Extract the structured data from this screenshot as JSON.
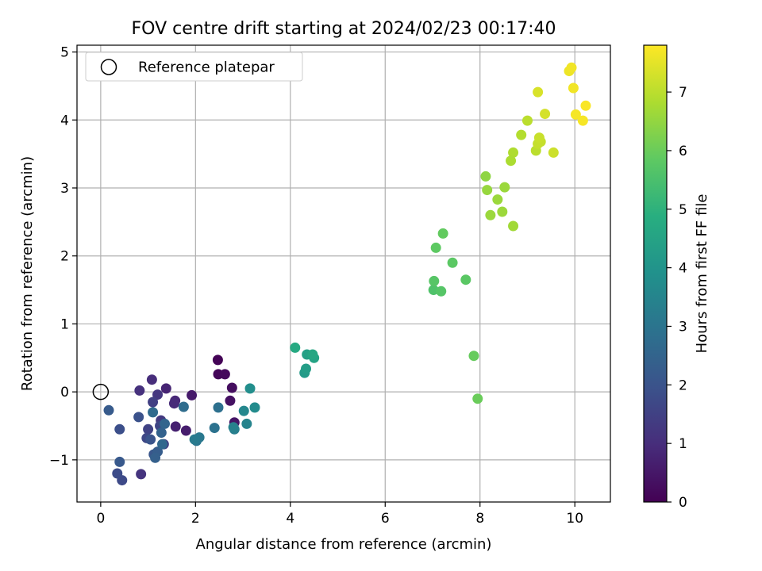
{
  "chart_data": {
    "type": "scatter",
    "title": "FOV centre drift starting at 2024/02/23 00:17:40",
    "xlabel": "Angular distance from reference (arcmin)",
    "ylabel": "Rotation from reference (arcmin)",
    "xlim": [
      -0.5,
      10.75
    ],
    "ylim": [
      -1.62,
      5.1
    ],
    "xticks": [
      0,
      2,
      4,
      6,
      8,
      10
    ],
    "yticks": [
      -1,
      0,
      1,
      2,
      3,
      4,
      5
    ],
    "xtick_labels": [
      "0",
      "2",
      "4",
      "6",
      "8",
      "10"
    ],
    "ytick_labels": [
      "−1",
      "0",
      "1",
      "2",
      "3",
      "4",
      "5"
    ],
    "grid": true,
    "legend": {
      "position": "top-left",
      "entries": [
        {
          "label": "Reference platepar",
          "marker": "open-circle"
        }
      ]
    },
    "reference_point": {
      "x": 0,
      "y": 0
    },
    "colorbar": {
      "label": "Hours from first FF file",
      "colormap": "viridis",
      "range": [
        0,
        7.8
      ],
      "ticks": [
        0,
        1,
        2,
        3,
        4,
        5,
        6,
        7
      ],
      "tick_labels": [
        "0",
        "1",
        "2",
        "3",
        "4",
        "5",
        "6",
        "7"
      ]
    },
    "points": [
      {
        "x": 2.47,
        "y": 0.47,
        "h": 0.05
      },
      {
        "x": 2.48,
        "y": 0.26,
        "h": 0.12
      },
      {
        "x": 2.62,
        "y": 0.26,
        "h": 0.2
      },
      {
        "x": 2.77,
        "y": 0.06,
        "h": 0.28
      },
      {
        "x": 2.73,
        "y": -0.13,
        "h": 0.36
      },
      {
        "x": 2.82,
        "y": -0.45,
        "h": 0.44
      },
      {
        "x": 1.92,
        "y": -0.05,
        "h": 0.55
      },
      {
        "x": 1.8,
        "y": -0.57,
        "h": 0.62
      },
      {
        "x": 1.58,
        "y": -0.51,
        "h": 0.7
      },
      {
        "x": 1.38,
        "y": 0.05,
        "h": 0.78
      },
      {
        "x": 1.57,
        "y": -0.13,
        "h": 0.86
      },
      {
        "x": 1.55,
        "y": -0.17,
        "h": 0.92
      },
      {
        "x": 1.08,
        "y": 0.18,
        "h": 1.0
      },
      {
        "x": 0.82,
        "y": 0.02,
        "h": 1.08
      },
      {
        "x": 0.85,
        "y": -1.21,
        "h": 1.15
      },
      {
        "x": 1.2,
        "y": -0.04,
        "h": 1.22
      },
      {
        "x": 1.27,
        "y": -0.42,
        "h": 1.3
      },
      {
        "x": 1.33,
        "y": -0.77,
        "h": 1.38
      },
      {
        "x": 1.1,
        "y": -0.15,
        "h": 1.45
      },
      {
        "x": 1.0,
        "y": -0.55,
        "h": 1.52
      },
      {
        "x": 1.25,
        "y": -0.5,
        "h": 1.6
      },
      {
        "x": 0.97,
        "y": -0.68,
        "h": 1.67
      },
      {
        "x": 0.45,
        "y": -1.3,
        "h": 1.74
      },
      {
        "x": 0.35,
        "y": -1.2,
        "h": 1.8
      },
      {
        "x": 0.4,
        "y": -0.55,
        "h": 1.88
      },
      {
        "x": 0.8,
        "y": -0.37,
        "h": 1.95
      },
      {
        "x": 1.05,
        "y": -0.7,
        "h": 2.02
      },
      {
        "x": 1.12,
        "y": -0.92,
        "h": 2.08
      },
      {
        "x": 0.4,
        "y": -1.03,
        "h": 2.15
      },
      {
        "x": 0.17,
        "y": -0.27,
        "h": 2.22
      },
      {
        "x": 1.2,
        "y": -0.88,
        "h": 2.3
      },
      {
        "x": 1.15,
        "y": -0.97,
        "h": 2.37
      },
      {
        "x": 1.28,
        "y": -0.6,
        "h": 2.44
      },
      {
        "x": 1.35,
        "y": -0.47,
        "h": 2.52
      },
      {
        "x": 1.3,
        "y": -0.77,
        "h": 2.6
      },
      {
        "x": 1.1,
        "y": -0.3,
        "h": 2.68
      },
      {
        "x": 1.75,
        "y": -0.22,
        "h": 2.76
      },
      {
        "x": 2.48,
        "y": -0.23,
        "h": 2.85
      },
      {
        "x": 2.4,
        "y": -0.53,
        "h": 2.94
      },
      {
        "x": 2.02,
        "y": -0.72,
        "h": 3.02
      },
      {
        "x": 2.08,
        "y": -0.67,
        "h": 3.1
      },
      {
        "x": 1.98,
        "y": -0.7,
        "h": 3.18
      },
      {
        "x": 2.82,
        "y": -0.55,
        "h": 3.3
      },
      {
        "x": 2.8,
        "y": -0.52,
        "h": 3.4
      },
      {
        "x": 3.08,
        "y": -0.47,
        "h": 3.5
      },
      {
        "x": 3.02,
        "y": -0.28,
        "h": 3.6
      },
      {
        "x": 3.25,
        "y": -0.23,
        "h": 3.7
      },
      {
        "x": 3.15,
        "y": 0.05,
        "h": 3.8
      },
      {
        "x": 4.3,
        "y": 0.28,
        "h": 4.2
      },
      {
        "x": 4.33,
        "y": 0.34,
        "h": 4.3
      },
      {
        "x": 4.35,
        "y": 0.55,
        "h": 4.4
      },
      {
        "x": 4.5,
        "y": 0.5,
        "h": 4.5
      },
      {
        "x": 4.47,
        "y": 0.55,
        "h": 4.6
      },
      {
        "x": 4.1,
        "y": 0.65,
        "h": 4.7
      },
      {
        "x": 7.02,
        "y": 1.5,
        "h": 5.6
      },
      {
        "x": 7.18,
        "y": 1.48,
        "h": 5.7
      },
      {
        "x": 7.03,
        "y": 1.63,
        "h": 5.72
      },
      {
        "x": 7.7,
        "y": 1.65,
        "h": 5.78
      },
      {
        "x": 7.42,
        "y": 1.9,
        "h": 5.8
      },
      {
        "x": 7.07,
        "y": 2.12,
        "h": 5.84
      },
      {
        "x": 7.22,
        "y": 2.33,
        "h": 5.9
      },
      {
        "x": 7.87,
        "y": 0.53,
        "h": 5.95
      },
      {
        "x": 7.95,
        "y": -0.1,
        "h": 6.0
      },
      {
        "x": 8.12,
        "y": 3.17,
        "h": 6.45
      },
      {
        "x": 8.15,
        "y": 2.97,
        "h": 6.55
      },
      {
        "x": 8.37,
        "y": 2.83,
        "h": 6.6
      },
      {
        "x": 8.22,
        "y": 2.6,
        "h": 6.6
      },
      {
        "x": 8.47,
        "y": 2.65,
        "h": 6.62
      },
      {
        "x": 8.52,
        "y": 3.01,
        "h": 6.6
      },
      {
        "x": 8.7,
        "y": 2.44,
        "h": 6.68
      },
      {
        "x": 8.7,
        "y": 3.52,
        "h": 6.85
      },
      {
        "x": 8.65,
        "y": 3.4,
        "h": 6.8
      },
      {
        "x": 8.87,
        "y": 3.78,
        "h": 6.9
      },
      {
        "x": 9.0,
        "y": 3.99,
        "h": 7.0
      },
      {
        "x": 9.18,
        "y": 3.55,
        "h": 7.0
      },
      {
        "x": 9.22,
        "y": 3.65,
        "h": 7.1
      },
      {
        "x": 9.28,
        "y": 3.68,
        "h": 7.12
      },
      {
        "x": 9.25,
        "y": 3.74,
        "h": 7.15
      },
      {
        "x": 9.55,
        "y": 3.52,
        "h": 7.2
      },
      {
        "x": 9.37,
        "y": 4.09,
        "h": 7.3
      },
      {
        "x": 9.22,
        "y": 4.41,
        "h": 7.35
      },
      {
        "x": 9.88,
        "y": 4.72,
        "h": 7.6
      },
      {
        "x": 9.93,
        "y": 4.77,
        "h": 7.65
      },
      {
        "x": 9.97,
        "y": 4.47,
        "h": 7.65
      },
      {
        "x": 10.02,
        "y": 4.08,
        "h": 7.7
      },
      {
        "x": 10.17,
        "y": 3.99,
        "h": 7.72
      },
      {
        "x": 10.23,
        "y": 4.21,
        "h": 7.75
      }
    ]
  }
}
